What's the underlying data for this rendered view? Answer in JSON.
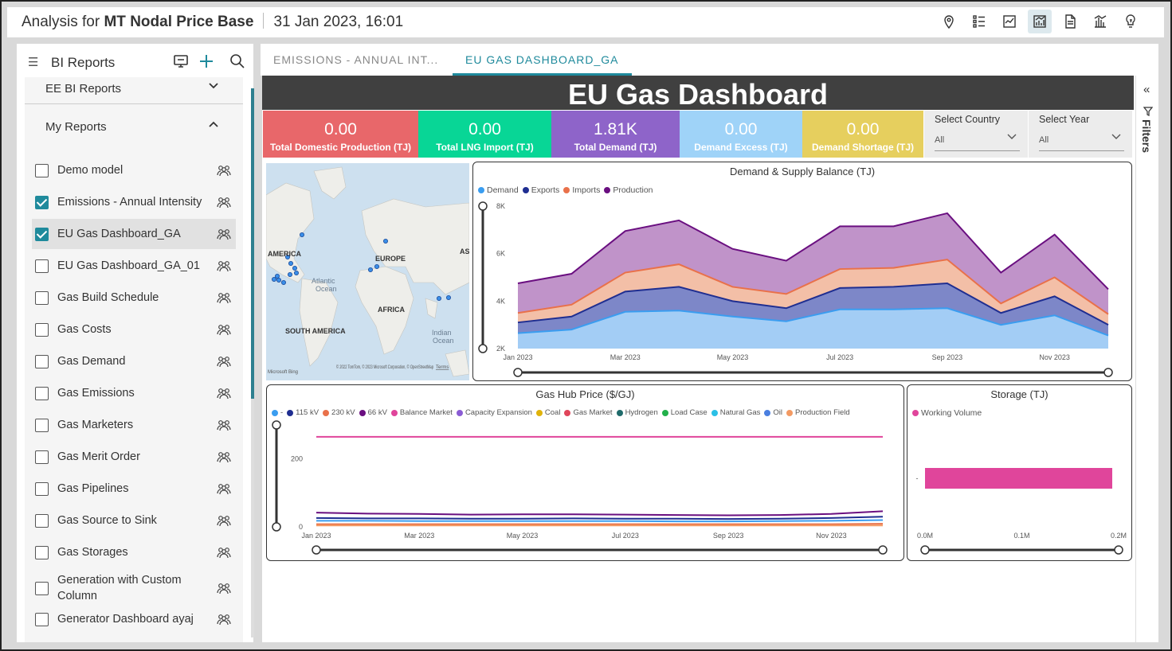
{
  "header": {
    "prefix": "Analysis for",
    "project": "MT Nodal Price Base",
    "timestamp": "31 Jan 2023, 16:01",
    "icons": [
      "location-icon",
      "list-icon",
      "report-icon",
      "chart-report-icon",
      "document-icon",
      "bar-chart-icon",
      "bulb-icon"
    ],
    "active_icon": "chart-report-icon"
  },
  "sidebar": {
    "title": "BI Reports",
    "sections": [
      {
        "label": "EE BI Reports",
        "expanded": false
      },
      {
        "label": "My Reports",
        "expanded": true
      }
    ],
    "items": [
      {
        "label": "Demo model",
        "checked": false
      },
      {
        "label": "Emissions - Annual Intensity",
        "checked": true
      },
      {
        "label": "EU Gas Dashboard_GA",
        "checked": true,
        "selected": true
      },
      {
        "label": "EU Gas Dashboard_GA_01",
        "checked": false
      },
      {
        "label": "Gas Build Schedule",
        "checked": false
      },
      {
        "label": "Gas Costs",
        "checked": false
      },
      {
        "label": "Gas Demand",
        "checked": false
      },
      {
        "label": "Gas Emissions",
        "checked": false
      },
      {
        "label": "Gas Marketers",
        "checked": false
      },
      {
        "label": "Gas Merit Order",
        "checked": false
      },
      {
        "label": "Gas Pipelines",
        "checked": false
      },
      {
        "label": "Gas Source to Sink",
        "checked": false
      },
      {
        "label": "Gas Storages",
        "checked": false
      },
      {
        "label": "Generation with Custom Column",
        "checked": false
      },
      {
        "label": "Generator Dashboard ayaj",
        "checked": false
      }
    ]
  },
  "tabs": [
    {
      "label": "EMISSIONS - ANNUAL INT...",
      "active": false
    },
    {
      "label": "EU GAS DASHBOARD_GA",
      "active": true
    }
  ],
  "dashboard": {
    "title": "EU Gas Dashboard",
    "kpis": [
      {
        "value": "0.00",
        "label": "Total Domestic Production (TJ)",
        "color": "#e8676a"
      },
      {
        "value": "0.00",
        "label": "Total LNG Import (TJ)",
        "color": "#08d696"
      },
      {
        "value": "1.81K",
        "label": "Total Demand (TJ)",
        "color": "#8e64c9"
      },
      {
        "value": "0.00",
        "label": "Demand Excess (TJ)",
        "color": "#9fd3f8"
      },
      {
        "value": "0.00",
        "label": "Demand Shortage (TJ)",
        "color": "#e6cf5e"
      }
    ],
    "slicers": [
      {
        "title": "Select Country",
        "value": "All"
      },
      {
        "title": "Select Year",
        "value": "All"
      }
    ],
    "filters_label": "Filters",
    "map": {
      "labels": [
        "AMERICA",
        "EUROPE",
        "AS",
        "Atlantic",
        "Ocean",
        "AFRICA",
        "SOUTH AMERICA",
        "Indian",
        "Ocean"
      ],
      "attribution": "© 2022 TomTom, © 2023 Microsoft Corporation, © OpenStreetMap",
      "terms": "Terms",
      "brand": "Microsoft Bing"
    }
  },
  "chart_data": [
    {
      "type": "area",
      "title": "Demand & Supply Balance (TJ)",
      "x": [
        "Jan 2023",
        "Feb 2023",
        "Mar 2023",
        "Apr 2023",
        "May 2023",
        "Jun 2023",
        "Jul 2023",
        "Aug 2023",
        "Sep 2023",
        "Oct 2023",
        "Nov 2023",
        "Dec 2023"
      ],
      "x_tick_labels": [
        "Jan 2023",
        "Mar 2023",
        "May 2023",
        "Jul 2023",
        "Sep 2023",
        "Nov 2023"
      ],
      "ylim": [
        2000,
        8000
      ],
      "y_tick_labels": [
        "2K",
        "4K",
        "6K",
        "8K"
      ],
      "series": [
        {
          "name": "Demand",
          "color": "#3a9df0",
          "values": [
            2650,
            2800,
            3550,
            3600,
            3350,
            3150,
            3650,
            3650,
            3700,
            3000,
            3400,
            2550
          ]
        },
        {
          "name": "Exports",
          "color": "#1f2e91",
          "values": [
            3100,
            3350,
            4400,
            4600,
            4000,
            3700,
            4550,
            4600,
            4750,
            3500,
            4200,
            3000
          ]
        },
        {
          "name": "Imports",
          "color": "#e9714a",
          "values": [
            3500,
            3850,
            5200,
            5550,
            4600,
            4300,
            5350,
            5400,
            5750,
            3900,
            5000,
            3450
          ]
        },
        {
          "name": "Production",
          "color": "#6a0f80",
          "values": [
            4750,
            5150,
            6950,
            7400,
            6200,
            5700,
            7150,
            7150,
            7700,
            5200,
            6800,
            4500
          ]
        }
      ]
    },
    {
      "type": "line",
      "title": "Gas Hub Price ($/GJ)",
      "x": [
        "Jan 2023",
        "Feb 2023",
        "Mar 2023",
        "Apr 2023",
        "May 2023",
        "Jun 2023",
        "Jul 2023",
        "Aug 2023",
        "Sep 2023",
        "Oct 2023",
        "Nov 2023",
        "Dec 2023"
      ],
      "x_tick_labels": [
        "Jan 2023",
        "Mar 2023",
        "May 2023",
        "Jul 2023",
        "Sep 2023",
        "Nov 2023"
      ],
      "ylim": [
        0,
        300
      ],
      "y_tick_labels": [
        "0",
        "200"
      ],
      "legend": [
        "-",
        "115 kV",
        "230 kV",
        "66 kV",
        "Balance Market",
        "Capacity Expansion",
        "Coal",
        "Gas Market",
        "Hydrogen",
        "Load Case",
        "Natural Gas",
        "Oil",
        "Production Field"
      ],
      "legend_colors": [
        "#3a9df0",
        "#1f2e91",
        "#e9714a",
        "#6a0f80",
        "#e0459b",
        "#8a5cd4",
        "#e0b30b",
        "#e0455a",
        "#206b6b",
        "#22b04b",
        "#2bc0e6",
        "#4a7fe0",
        "#f39a63"
      ],
      "series": [
        {
          "name": "Balance Market",
          "color": "#e0459b",
          "values": [
            265,
            265,
            265,
            265,
            265,
            265,
            265,
            265,
            265,
            265,
            265,
            265
          ]
        },
        {
          "name": "66 kV",
          "color": "#6a0f80",
          "values": [
            42,
            39,
            38,
            36,
            37,
            37,
            36,
            35,
            34,
            35,
            38,
            46
          ]
        },
        {
          "name": "115 kV",
          "color": "#1f2e91",
          "values": [
            26,
            25,
            25,
            24,
            24,
            25,
            24,
            24,
            23,
            24,
            26,
            30
          ]
        },
        {
          "name": "-",
          "color": "#3a9df0",
          "values": [
            18,
            18,
            17,
            17,
            17,
            17,
            17,
            16,
            16,
            17,
            18,
            20
          ]
        },
        {
          "name": "230 kV",
          "color": "#e9714a",
          "values": [
            8,
            8,
            8,
            8,
            8,
            8,
            8,
            8,
            8,
            8,
            8,
            9
          ]
        },
        {
          "name": "Production Field",
          "color": "#f39a63",
          "values": [
            4,
            4,
            4,
            4,
            4,
            4,
            4,
            4,
            4,
            4,
            4,
            4
          ]
        }
      ]
    },
    {
      "type": "bar",
      "orientation": "horizontal",
      "title": "Storage (TJ)",
      "categories": [
        "-"
      ],
      "series": [
        {
          "name": "Working Volume",
          "color": "#e0459b",
          "values": [
            0.2
          ]
        }
      ],
      "xlim": [
        0,
        0.2
      ],
      "x_tick_labels": [
        "0.0M",
        "0.1M",
        "0.2M"
      ]
    }
  ]
}
